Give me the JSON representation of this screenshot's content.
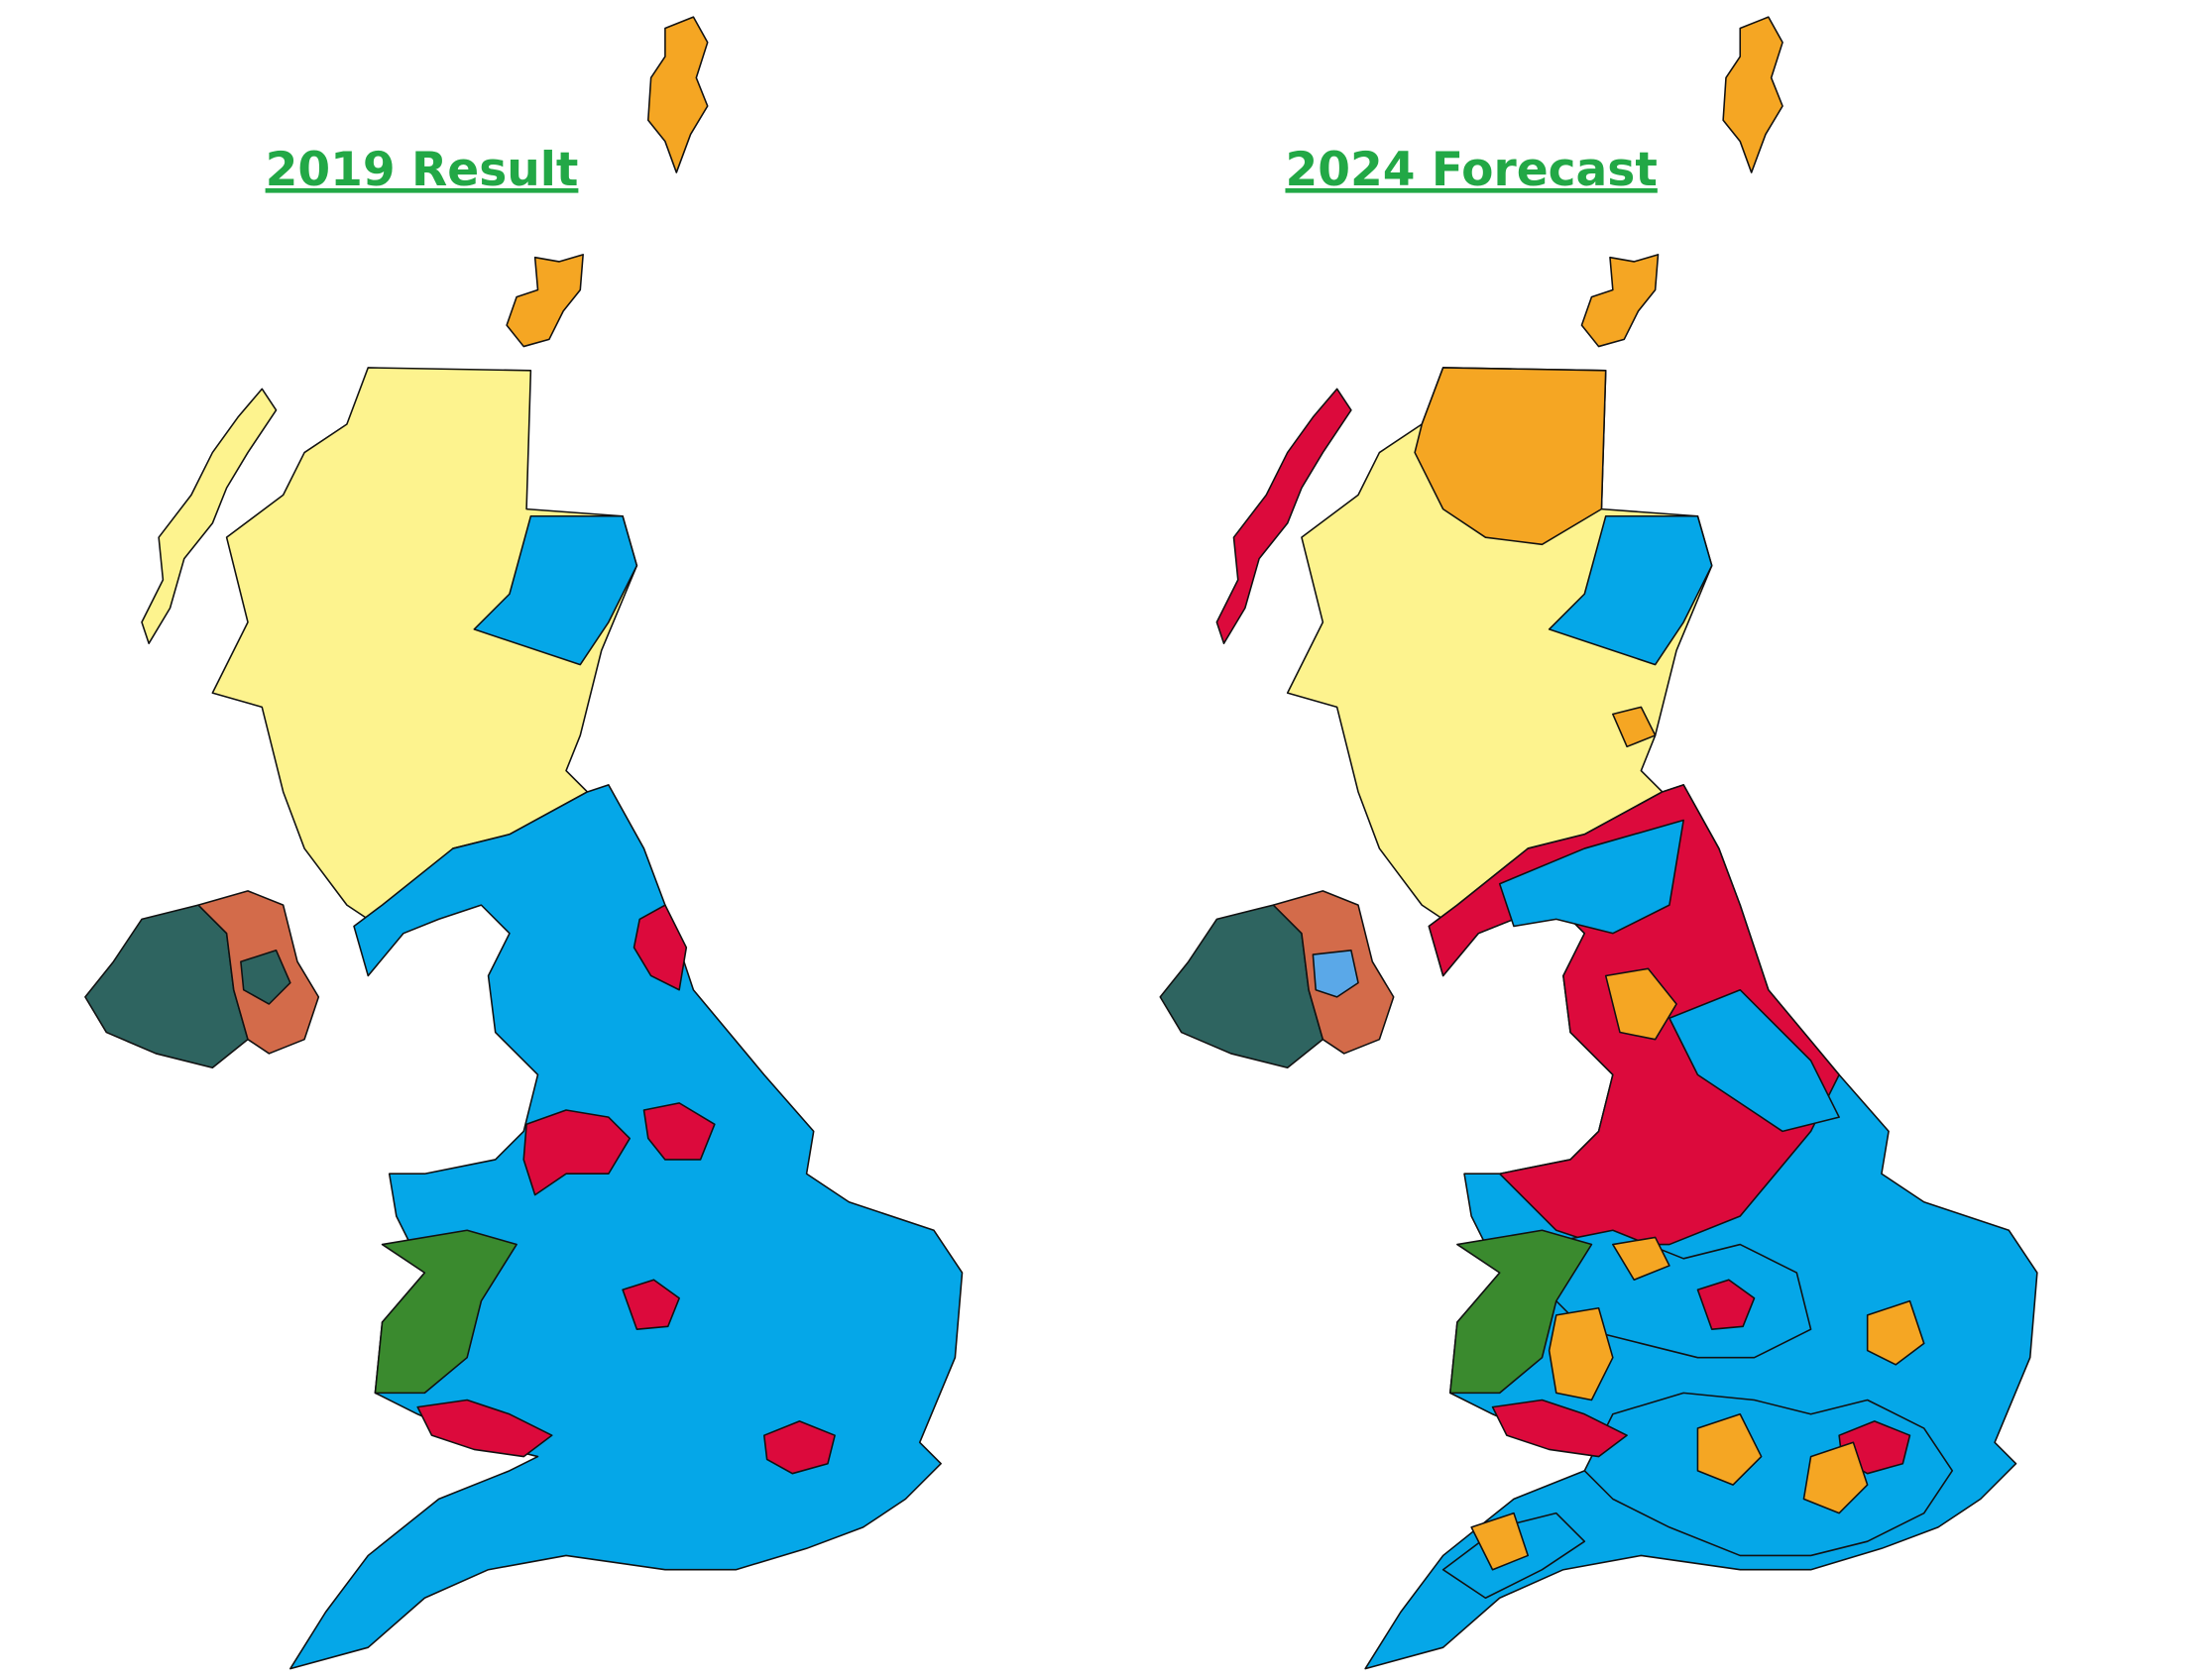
{
  "maps": [
    {
      "title": "2019 Result"
    },
    {
      "title": "2024 Forecast"
    }
  ]
}
